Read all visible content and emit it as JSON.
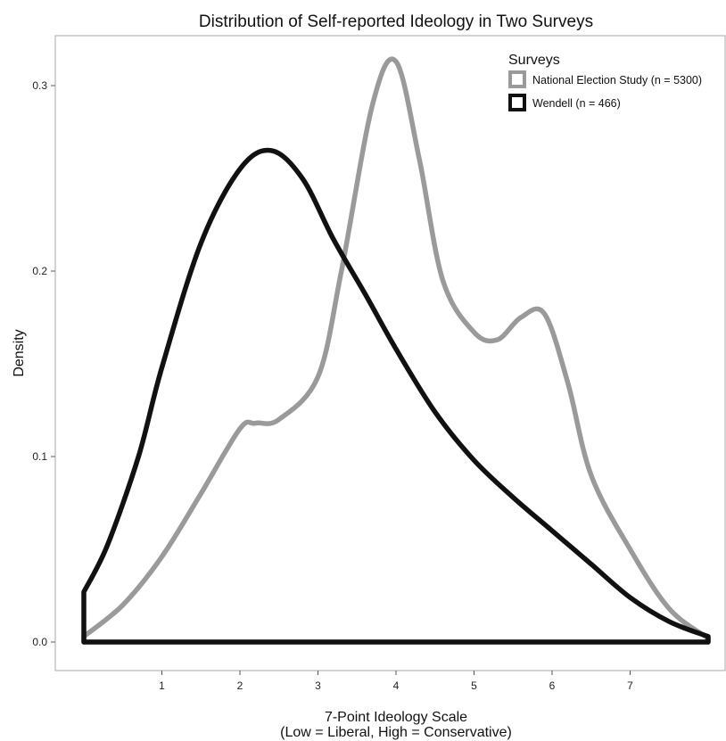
{
  "chart_data": {
    "type": "line",
    "title": "Distribution of Self-reported Ideology in Two Surveys",
    "xlabel_line1": "7-Point Ideology Scale",
    "xlabel_line2": "(Low = Liberal, High = Conservative)",
    "ylabel": "Density",
    "xlim": [
      0,
      8
    ],
    "ylim": [
      0,
      0.32
    ],
    "x_ticks": [
      1,
      2,
      3,
      4,
      5,
      6,
      7
    ],
    "x_tick_labels": [
      "1",
      "2",
      "3",
      "4",
      "5",
      "6",
      "7"
    ],
    "y_ticks": [
      0,
      0.1,
      0.2,
      0.3
    ],
    "y_tick_labels": [
      "0.0",
      "0.1",
      "0.2",
      "0.3"
    ],
    "grid": false,
    "legend": {
      "title": "Surveys",
      "placement": "top-right",
      "entries": [
        "National Election Study (n = 5300)",
        "Wendell (n = 466)"
      ]
    },
    "series": [
      {
        "name": "National Election Study (n = 5300)",
        "color": "#9a9a9a",
        "x": [
          0,
          0.5,
          1.0,
          1.5,
          2.0,
          2.2,
          2.5,
          3.0,
          3.3,
          3.7,
          4.0,
          4.3,
          4.6,
          5.0,
          5.3,
          5.6,
          5.9,
          6.2,
          6.5,
          7.0,
          7.5,
          8.0
        ],
        "y": [
          0.003,
          0.02,
          0.046,
          0.08,
          0.115,
          0.118,
          0.12,
          0.143,
          0.2,
          0.29,
          0.313,
          0.26,
          0.195,
          0.167,
          0.163,
          0.175,
          0.177,
          0.14,
          0.09,
          0.05,
          0.018,
          0.002
        ]
      },
      {
        "name": "Wendell (n = 466)",
        "color": "#111111",
        "x": [
          0,
          0.3,
          0.7,
          1.0,
          1.5,
          2.0,
          2.4,
          2.8,
          3.2,
          3.6,
          4.0,
          4.5,
          5.0,
          5.5,
          6.0,
          6.5,
          7.0,
          7.5,
          8.0
        ],
        "y": [
          0.027,
          0.052,
          0.1,
          0.148,
          0.215,
          0.255,
          0.265,
          0.25,
          0.217,
          0.188,
          0.158,
          0.124,
          0.098,
          0.078,
          0.06,
          0.042,
          0.024,
          0.011,
          0.003
        ]
      }
    ]
  }
}
